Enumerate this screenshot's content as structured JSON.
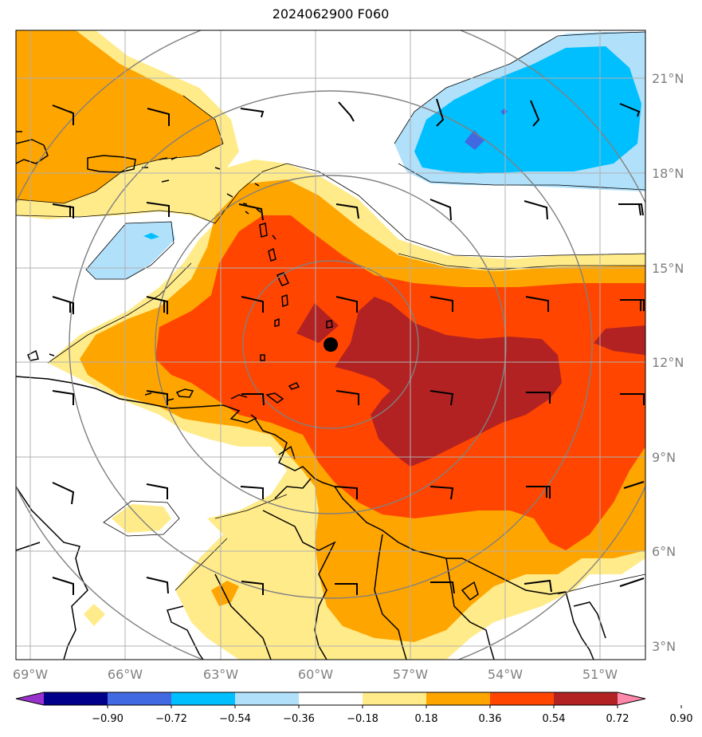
{
  "title": "2024062900 F060",
  "longitude_labels": [
    "69°W",
    "66°W",
    "63°W",
    "60°W",
    "57°W",
    "54°W",
    "51°W"
  ],
  "latitude_labels": [
    "21°N",
    "18°N",
    "15°N",
    "12°N",
    "9°N",
    "6°N",
    "3°N"
  ],
  "colorbar": {
    "ticks": [
      "−0.90",
      "−0.72",
      "−0.54",
      "−0.36",
      "−0.18",
      "0.18",
      "0.36",
      "0.54",
      "0.72",
      "0.90"
    ],
    "colors": [
      "#9932cc",
      "#00008b",
      "#4169e1",
      "#00bfff",
      "#b0e0fa",
      "#ffffff",
      "#ffeb8a",
      "#ffa500",
      "#ff4500",
      "#b22222",
      "#ff88aa"
    ]
  },
  "fill_colors": {
    "pale_yellow": "#ffeb8a",
    "orange": "#ffa500",
    "orange_red": "#ff4500",
    "dark_red": "#b22222",
    "light_blue": "#b0e0fa",
    "sky_blue": "#00bfff",
    "royal_blue": "#4169e1"
  },
  "center_marker": {
    "lon": -59.3,
    "lat": 12.6
  }
}
